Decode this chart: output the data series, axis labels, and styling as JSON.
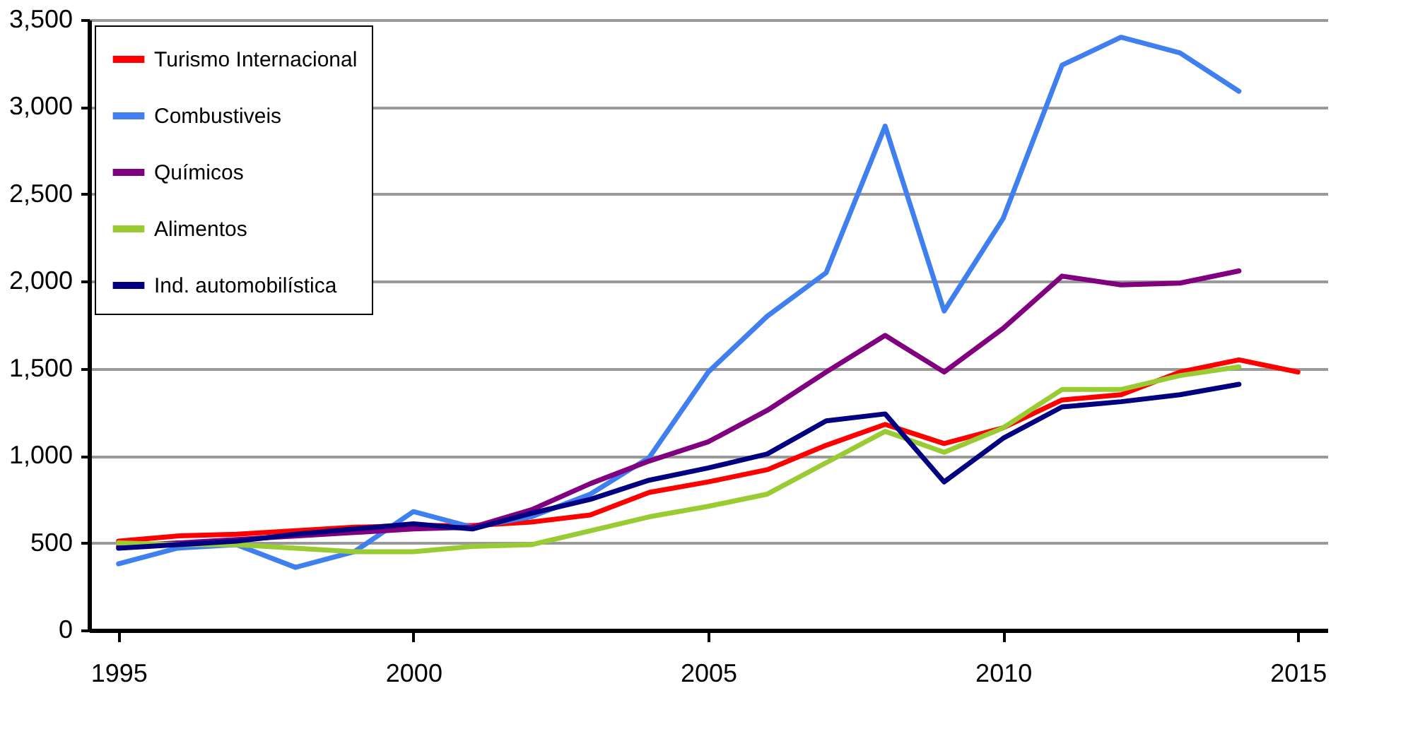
{
  "chart_data": {
    "type": "line",
    "x": [
      1995,
      1996,
      1997,
      1998,
      1999,
      2000,
      2001,
      2002,
      2003,
      2004,
      2005,
      2006,
      2007,
      2008,
      2009,
      2010,
      2011,
      2012,
      2013,
      2014,
      2015
    ],
    "series": [
      {
        "name": "Turismo Internacional",
        "color": "#ff0000",
        "values": [
          510,
          540,
          550,
          570,
          590,
          600,
          600,
          620,
          660,
          790,
          850,
          920,
          1060,
          1180,
          1070,
          1160,
          1320,
          1350,
          1480,
          1550,
          1480
        ]
      },
      {
        "name": "Combustiveis",
        "color": "#3f7fef",
        "values": [
          380,
          470,
          490,
          360,
          450,
          680,
          590,
          650,
          780,
          990,
          1480,
          1800,
          2050,
          2890,
          1830,
          2360,
          3240,
          3400,
          3310,
          3090,
          null
        ]
      },
      {
        "name": "Químicos",
        "color": "#800080",
        "values": [
          480,
          500,
          520,
          540,
          560,
          580,
          590,
          690,
          840,
          970,
          1080,
          1260,
          1480,
          1690,
          1480,
          1730,
          2030,
          1980,
          1990,
          2060,
          null
        ]
      },
      {
        "name": "Alimentos",
        "color": "#99cc33",
        "values": [
          500,
          490,
          490,
          470,
          450,
          450,
          480,
          490,
          570,
          650,
          710,
          780,
          960,
          1140,
          1020,
          1160,
          1380,
          1380,
          1460,
          1510,
          null
        ]
      },
      {
        "name": "Ind. automobilística",
        "color": "#000080",
        "values": [
          470,
          490,
          510,
          550,
          580,
          610,
          580,
          670,
          750,
          860,
          930,
          1010,
          1200,
          1240,
          850,
          1100,
          1280,
          1310,
          1350,
          1410,
          null
        ]
      }
    ],
    "xlim": [
      1994.5,
      2015.5
    ],
    "xticks": [
      1995,
      2000,
      2005,
      2010,
      2015
    ],
    "ylim": [
      0,
      3500
    ],
    "yticks": [
      0,
      500,
      {
        "value": 1000,
        "label": "1,000"
      },
      {
        "value": 1500,
        "label": "1,500"
      },
      {
        "value": 2000,
        "label": "2,000"
      },
      {
        "value": 2500,
        "label": "2,500"
      },
      {
        "value": 3000,
        "label": "3,000"
      },
      {
        "value": 3500,
        "label": "3,500"
      }
    ],
    "grid": "y",
    "legend": "top left",
    "marker": "none",
    "line_style": "solid"
  }
}
